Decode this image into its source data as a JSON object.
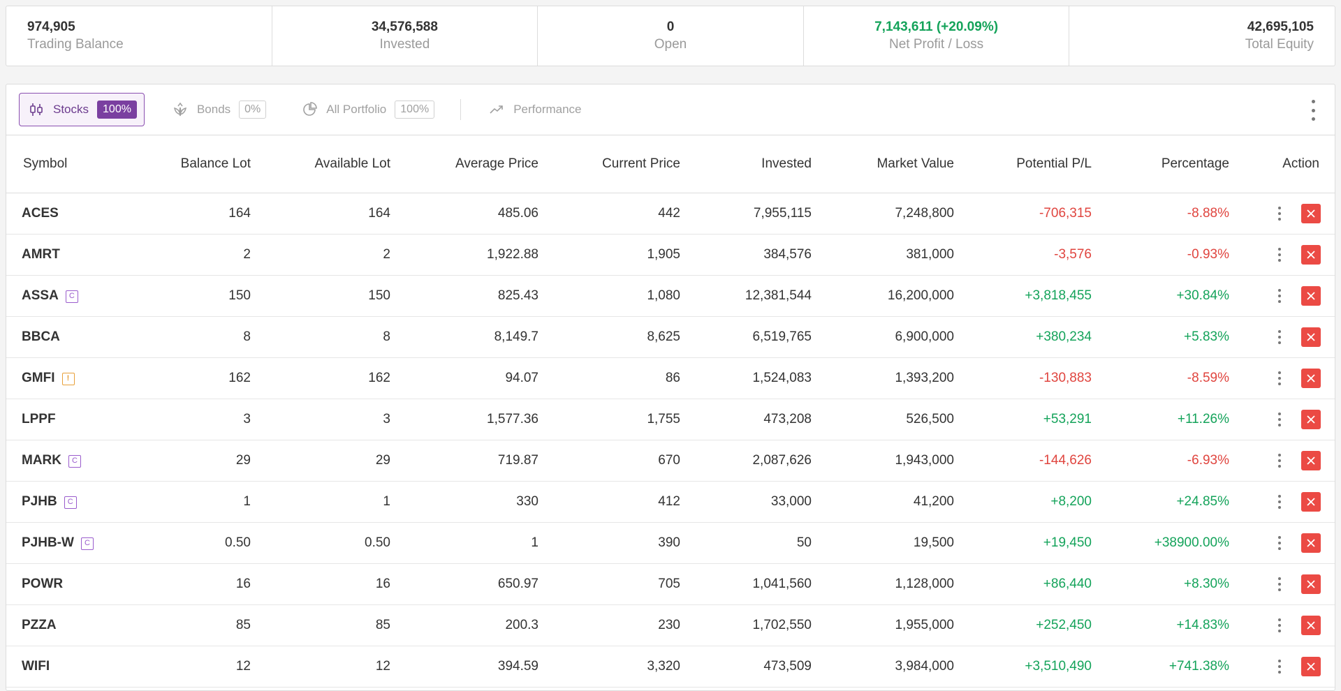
{
  "summary": [
    {
      "value": "974,905",
      "label": "Trading Balance",
      "align": "left",
      "color": ""
    },
    {
      "value": "34,576,588",
      "label": "Invested",
      "align": "center",
      "color": ""
    },
    {
      "value": "0",
      "label": "Open",
      "align": "center",
      "color": ""
    },
    {
      "value": "7,143,611 (+20.09%)",
      "label": "Net Profit / Loss",
      "align": "center",
      "color": "green"
    },
    {
      "value": "42,695,105",
      "label": "Total Equity",
      "align": "right",
      "color": ""
    }
  ],
  "tabs": [
    {
      "label": "Stocks",
      "pct": "100%",
      "icon": "candlestick-icon",
      "active": true
    },
    {
      "label": "Bonds",
      "pct": "0%",
      "icon": "leaf-badge-icon",
      "active": false
    },
    {
      "label": "All Portfolio",
      "pct": "100%",
      "icon": "pie-chart-icon",
      "active": false
    },
    {
      "label": "Performance",
      "pct": "",
      "icon": "trend-up-icon",
      "active": false
    }
  ],
  "table": {
    "columns": [
      "Symbol",
      "Balance Lot",
      "Available Lot",
      "Average Price",
      "Current Price",
      "Invested",
      "Market Value",
      "Potential P/L",
      "Percentage",
      "Action"
    ],
    "rows": [
      {
        "symbol": "ACES",
        "badge": "",
        "balance_lot": "164",
        "available_lot": "164",
        "avg_price": "485.06",
        "current_price": "442",
        "invested": "7,955,115",
        "market_value": "7,248,800",
        "pl": "-706,315",
        "pct": "-8.88%",
        "trend": "neg"
      },
      {
        "symbol": "AMRT",
        "badge": "",
        "balance_lot": "2",
        "available_lot": "2",
        "avg_price": "1,922.88",
        "current_price": "1,905",
        "invested": "384,576",
        "market_value": "381,000",
        "pl": "-3,576",
        "pct": "-0.93%",
        "trend": "neg"
      },
      {
        "symbol": "ASSA",
        "badge": "C",
        "balance_lot": "150",
        "available_lot": "150",
        "avg_price": "825.43",
        "current_price": "1,080",
        "invested": "12,381,544",
        "market_value": "16,200,000",
        "pl": "+3,818,455",
        "pct": "+30.84%",
        "trend": "pos"
      },
      {
        "symbol": "BBCA",
        "badge": "",
        "balance_lot": "8",
        "available_lot": "8",
        "avg_price": "8,149.7",
        "current_price": "8,625",
        "invested": "6,519,765",
        "market_value": "6,900,000",
        "pl": "+380,234",
        "pct": "+5.83%",
        "trend": "pos"
      },
      {
        "symbol": "GMFI",
        "badge": "!",
        "balance_lot": "162",
        "available_lot": "162",
        "avg_price": "94.07",
        "current_price": "86",
        "invested": "1,524,083",
        "market_value": "1,393,200",
        "pl": "-130,883",
        "pct": "-8.59%",
        "trend": "neg"
      },
      {
        "symbol": "LPPF",
        "badge": "",
        "balance_lot": "3",
        "available_lot": "3",
        "avg_price": "1,577.36",
        "current_price": "1,755",
        "invested": "473,208",
        "market_value": "526,500",
        "pl": "+53,291",
        "pct": "+11.26%",
        "trend": "pos"
      },
      {
        "symbol": "MARK",
        "badge": "C",
        "balance_lot": "29",
        "available_lot": "29",
        "avg_price": "719.87",
        "current_price": "670",
        "invested": "2,087,626",
        "market_value": "1,943,000",
        "pl": "-144,626",
        "pct": "-6.93%",
        "trend": "neg"
      },
      {
        "symbol": "PJHB",
        "badge": "C",
        "balance_lot": "1",
        "available_lot": "1",
        "avg_price": "330",
        "current_price": "412",
        "invested": "33,000",
        "market_value": "41,200",
        "pl": "+8,200",
        "pct": "+24.85%",
        "trend": "pos"
      },
      {
        "symbol": "PJHB-W",
        "badge": "C",
        "balance_lot": "0.50",
        "available_lot": "0.50",
        "avg_price": "1",
        "current_price": "390",
        "invested": "50",
        "market_value": "19,500",
        "pl": "+19,450",
        "pct": "+38900.00%",
        "trend": "pos"
      },
      {
        "symbol": "POWR",
        "badge": "",
        "balance_lot": "16",
        "available_lot": "16",
        "avg_price": "650.97",
        "current_price": "705",
        "invested": "1,041,560",
        "market_value": "1,128,000",
        "pl": "+86,440",
        "pct": "+8.30%",
        "trend": "pos"
      },
      {
        "symbol": "PZZA",
        "badge": "",
        "balance_lot": "85",
        "available_lot": "85",
        "avg_price": "200.3",
        "current_price": "230",
        "invested": "1,702,550",
        "market_value": "1,955,000",
        "pl": "+252,450",
        "pct": "+14.83%",
        "trend": "pos"
      },
      {
        "symbol": "WIFI",
        "badge": "",
        "balance_lot": "12",
        "available_lot": "12",
        "avg_price": "394.59",
        "current_price": "3,320",
        "invested": "473,509",
        "market_value": "3,984,000",
        "pl": "+3,510,490",
        "pct": "+741.38%",
        "trend": "pos"
      }
    ]
  },
  "colors": {
    "accent": "#7a3fa0",
    "positive": "#14a35a",
    "negative": "#e0453f",
    "close_button": "#eb4a44"
  }
}
